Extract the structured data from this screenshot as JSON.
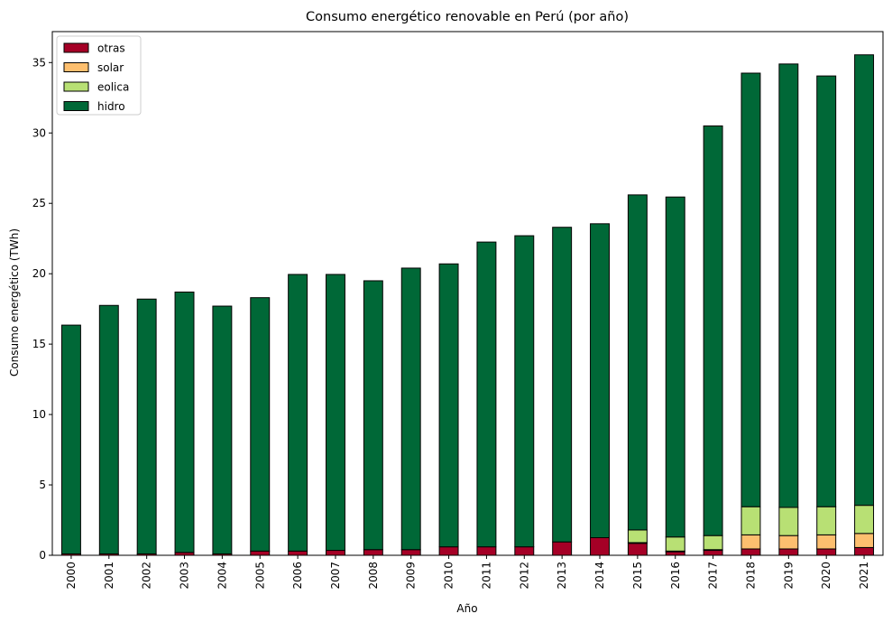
{
  "chart_data": {
    "type": "bar",
    "stacked": true,
    "title": "Consumo energético renovable en Perú (por año)",
    "xlabel": "Año",
    "ylabel": "Consumo energético (TWh)",
    "categories": [
      "2000",
      "2001",
      "2002",
      "2003",
      "2004",
      "2005",
      "2006",
      "2007",
      "2008",
      "2009",
      "2010",
      "2011",
      "2012",
      "2013",
      "2014",
      "2015",
      "2016",
      "2017",
      "2018",
      "2019",
      "2020",
      "2021"
    ],
    "ylim": [
      0,
      37.2
    ],
    "yticks": [
      0,
      5,
      10,
      15,
      20,
      25,
      30,
      35
    ],
    "grid": false,
    "legend_position": "upper-left",
    "series": [
      {
        "name": "otras",
        "color": "#a50026",
        "values": [
          0.1,
          0.1,
          0.1,
          0.2,
          0.1,
          0.3,
          0.3,
          0.35,
          0.4,
          0.4,
          0.6,
          0.6,
          0.6,
          0.95,
          1.25,
          0.85,
          0.25,
          0.35,
          0.45,
          0.45,
          0.45,
          0.55
        ]
      },
      {
        "name": "solar",
        "color": "#fdbf6f",
        "values": [
          0,
          0,
          0,
          0,
          0,
          0,
          0,
          0,
          0,
          0,
          0,
          0,
          0,
          0,
          0,
          0.05,
          0.05,
          0.05,
          1.0,
          0.95,
          1.0,
          1.0
        ]
      },
      {
        "name": "eolica",
        "color": "#b8e074",
        "values": [
          0,
          0,
          0,
          0,
          0,
          0,
          0,
          0,
          0,
          0,
          0,
          0,
          0,
          0,
          0,
          0.9,
          1.0,
          1.0,
          2.0,
          2.0,
          2.0,
          2.0
        ]
      },
      {
        "name": "hidro",
        "color": "#006837",
        "values": [
          16.25,
          17.65,
          18.1,
          18.5,
          17.6,
          18.0,
          19.65,
          19.6,
          19.1,
          20.0,
          20.1,
          21.65,
          22.1,
          22.35,
          22.3,
          23.8,
          24.15,
          29.1,
          30.8,
          31.5,
          30.6,
          32.0
        ]
      }
    ]
  }
}
